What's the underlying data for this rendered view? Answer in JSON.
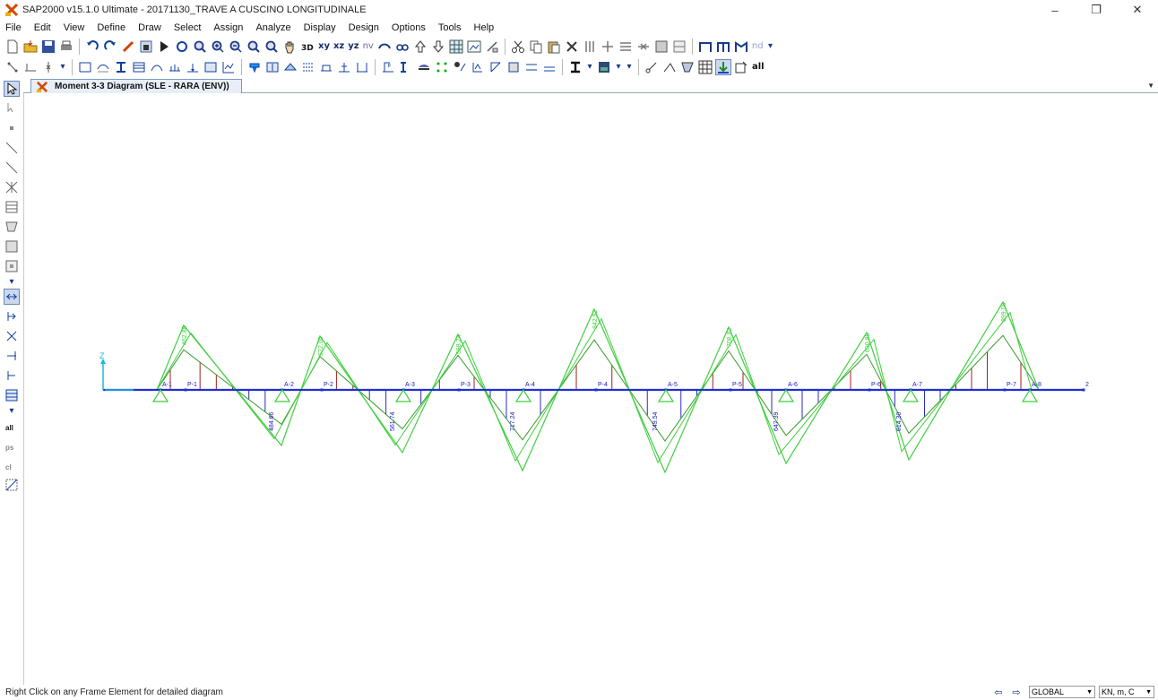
{
  "window": {
    "title": "SAP2000 v15.1.0 Ultimate  - 20171130_TRAVE A CUSCINO LONGITUDINALE",
    "minimize": "–",
    "restore": "❐",
    "close": "✕"
  },
  "menu": [
    "File",
    "Edit",
    "View",
    "Define",
    "Draw",
    "Select",
    "Assign",
    "Analyze",
    "Display",
    "Design",
    "Options",
    "Tools",
    "Help"
  ],
  "toolbar": {
    "xy": "xy",
    "xz": "xz",
    "yz": "yz",
    "nv": "nv",
    "three_d": "3D",
    "nd": "nd",
    "all": "all"
  },
  "tab": {
    "label": "Moment 3-3 Diagram  (SLE - RARA (ENV))"
  },
  "diagram": {
    "axis_label": "Z",
    "joints": [
      {
        "name": "A-1",
        "kind": "support"
      },
      {
        "name": "P-1",
        "kind": "span"
      },
      {
        "name": "A-2",
        "kind": "support"
      },
      {
        "name": "P-2",
        "kind": "span"
      },
      {
        "name": "A-3",
        "kind": "support"
      },
      {
        "name": "P-3",
        "kind": "span"
      },
      {
        "name": "A-4",
        "kind": "support"
      },
      {
        "name": "P-4",
        "kind": "span"
      },
      {
        "name": "A-5",
        "kind": "support"
      },
      {
        "name": "P-5",
        "kind": "span"
      },
      {
        "name": "A-6",
        "kind": "support"
      },
      {
        "name": "P-6",
        "kind": "span"
      },
      {
        "name": "A-7",
        "kind": "support"
      },
      {
        "name": "P-7",
        "kind": "span"
      },
      {
        "name": "A-8",
        "kind": "support"
      },
      {
        "name": "2",
        "kind": "end"
      }
    ],
    "positive_labels": [
      "462.88",
      "522.00",
      "598.24",
      "842.92",
      "708.82",
      "690.89",
      "899.08"
    ],
    "negative_labels": [
      "484.66",
      "561.74",
      "717.24",
      "749.54",
      "647.39",
      "614.30"
    ],
    "colors": {
      "beam": "#1f2fd4",
      "envelope": "#3fcf3f",
      "positive_fill": "#a0201a",
      "negative_fill": "#2a2ac8",
      "support": "#3fcf3f"
    }
  },
  "status": {
    "message": "Right Click on any Frame Element for detailed diagram",
    "coord_system": "GLOBAL",
    "units": "KN, m, C"
  }
}
